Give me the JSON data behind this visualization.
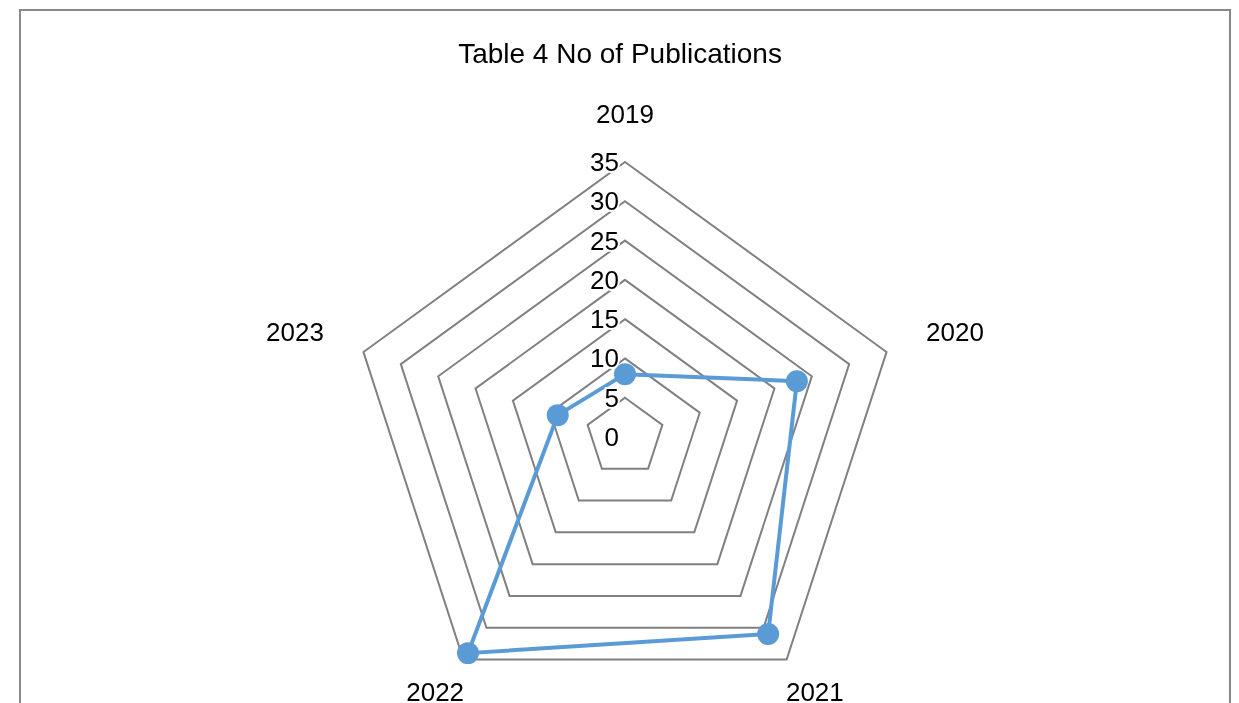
{
  "chart_data": {
    "type": "radar",
    "title": "Table 4 No of Publications",
    "categories": [
      "2019",
      "2020",
      "2021",
      "2022",
      "2023"
    ],
    "series": [
      {
        "color": "#5b9bd5",
        "values": [
          8,
          23,
          31,
          34,
          9
        ]
      }
    ],
    "ylim": [
      0,
      35
    ],
    "yticks": [
      0,
      5,
      10,
      15,
      20,
      25,
      30,
      35
    ],
    "marker": "circle",
    "grid": true
  }
}
